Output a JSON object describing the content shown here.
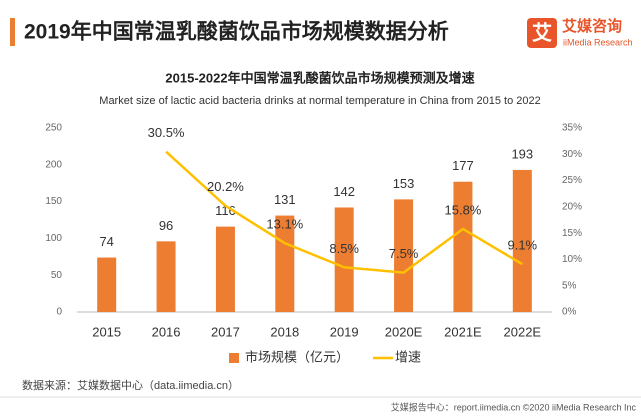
{
  "header": {
    "title": "2019年中国常温乳酸菌饮品市场规模数据分析",
    "logo_icon": "艾",
    "logo": "艾媒咨询",
    "logo_sub": "iiMedia Research"
  },
  "chart_data": {
    "type": "combo",
    "title": "2015-2022年中国常温乳酸菌饮品市场规模预测及增速",
    "subtitle": "Market size of lactic acid bacteria drinks at normal temperature in China from 2015 to 2022",
    "categories": [
      "2015",
      "2016",
      "2017",
      "2018",
      "2019",
      "2020E",
      "2021E",
      "2022E"
    ],
    "series": [
      {
        "name": "市场规模（亿元）",
        "type": "bar",
        "color": "#ED7D31",
        "values": [
          74,
          96,
          116,
          131,
          142,
          153,
          177,
          193
        ]
      },
      {
        "name": "增速",
        "type": "line",
        "axis": "y2",
        "color": "#FFC000",
        "values": [
          null,
          30.5,
          20.2,
          13.1,
          8.5,
          7.5,
          15.8,
          9.1
        ],
        "value_labels": [
          null,
          "30.5%",
          "20.2%",
          "13.1%",
          "8.5%",
          "7.5%",
          "15.8%",
          "9.1%"
        ]
      }
    ],
    "ylim": [
      0,
      250
    ],
    "yticks": [
      0,
      50,
      100,
      150,
      200,
      250
    ],
    "y2lim": [
      0,
      35
    ],
    "y2ticks": [
      {
        "value": 0,
        "label": "0%"
      },
      {
        "value": 5,
        "label": "5%"
      },
      {
        "value": 10,
        "label": "10%"
      },
      {
        "value": 15,
        "label": "15%"
      },
      {
        "value": 20,
        "label": "20%"
      },
      {
        "value": 25,
        "label": "25%"
      },
      {
        "value": 30,
        "label": "30%"
      },
      {
        "value": 35,
        "label": "35%"
      }
    ],
    "legend": "bottom"
  },
  "source": "数据来源：艾媒数据中心（data.iimedia.cn）",
  "footer": "艾媒报告中心：report.iimedia.cn ©2020 iiMedia Research Inc"
}
